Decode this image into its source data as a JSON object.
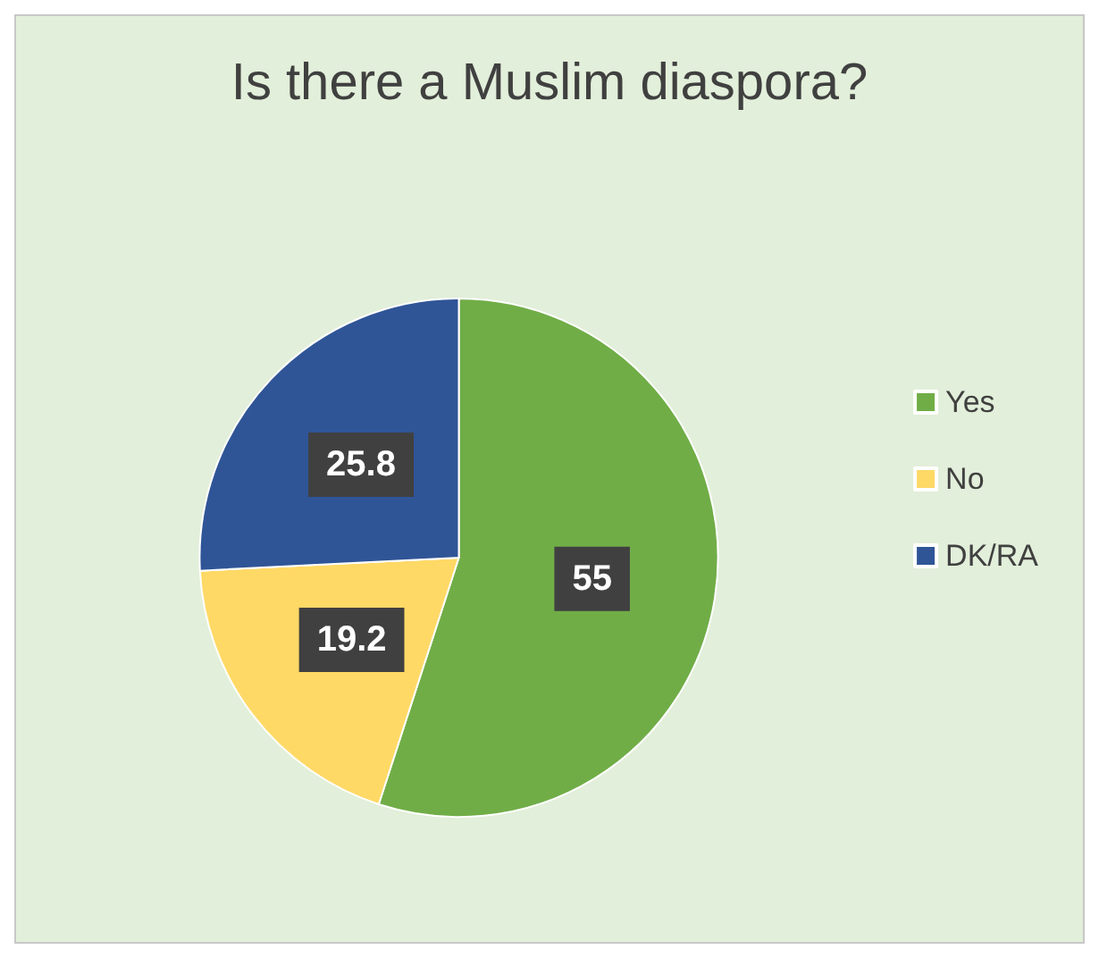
{
  "chart_data": {
    "type": "pie",
    "title": "Is there a Muslim diaspora?",
    "categories": [
      "Yes",
      "No",
      "DK/RA"
    ],
    "values": [
      55,
      19.2,
      25.8
    ],
    "colors": [
      "#70ad47",
      "#ffd966",
      "#2f5597"
    ],
    "data_labels": true,
    "legend": "right"
  }
}
